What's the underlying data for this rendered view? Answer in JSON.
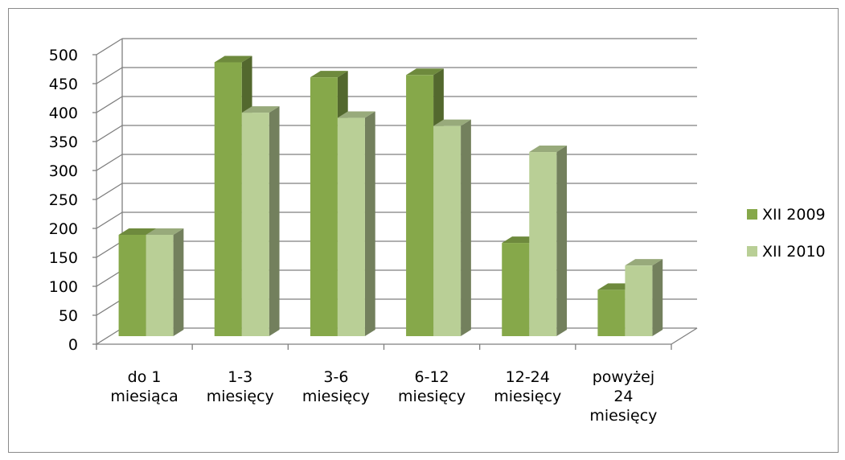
{
  "chart_data": {
    "type": "bar",
    "subtype": "3d-clustered-column",
    "categories": [
      [
        "do 1",
        "miesiąca"
      ],
      [
        "1-3",
        "miesięcy"
      ],
      [
        "3-6",
        "miesięcy"
      ],
      [
        "6-12",
        "miesięcy"
      ],
      [
        "12-24",
        "miesięcy"
      ],
      [
        "powyżej",
        "24",
        "miesięcy"
      ]
    ],
    "series": [
      {
        "name": "XII 2009",
        "values": [
          175,
          473,
          447,
          451,
          161,
          80
        ],
        "color": "#86a84a"
      },
      {
        "name": "XII 2010",
        "values": [
          175,
          386,
          377,
          363,
          318,
          122
        ],
        "color": "#b9cf96"
      }
    ],
    "ylim": [
      0,
      500
    ],
    "yticks": [
      0,
      50,
      100,
      150,
      200,
      250,
      300,
      350,
      400,
      450,
      500
    ],
    "grid": true,
    "legend_position": "right",
    "gridline_color": "#7f7f7f"
  }
}
